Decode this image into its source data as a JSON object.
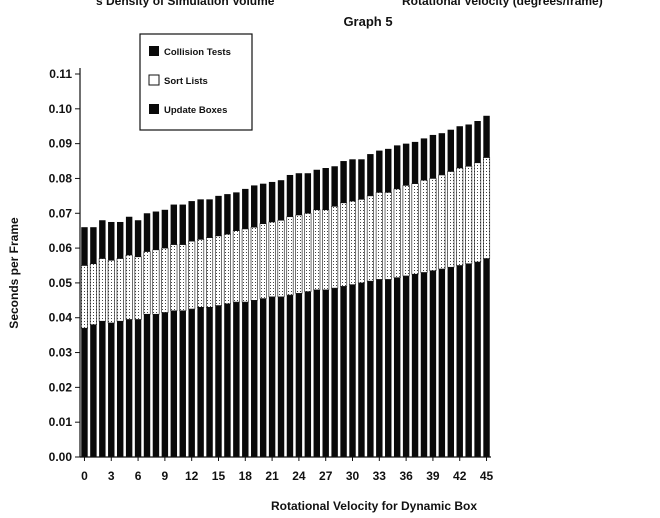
{
  "header_fragments": {
    "left": "s Density of Simulation Volume",
    "right": "Rotational Velocity (degrees/frame)"
  },
  "chart_data": {
    "type": "bar",
    "stacked": true,
    "title": "Graph 5",
    "xlabel": "Rotational Velocity for Dynamic Box",
    "ylabel": "Seconds per Frame",
    "ylim": [
      0,
      0.11
    ],
    "yticks": [
      "0.00",
      "0.01",
      "0.02",
      "0.03",
      "0.04",
      "0.05",
      "0.06",
      "0.07",
      "0.08",
      "0.09",
      "0.10",
      "0.11"
    ],
    "xticks": [
      "0",
      "3",
      "6",
      "9",
      "12",
      "15",
      "18",
      "21",
      "24",
      "27",
      "30",
      "33",
      "36",
      "39",
      "42",
      "45"
    ],
    "grid": false,
    "legend_position": "top-left",
    "categories": [
      0,
      1,
      2,
      3,
      4,
      5,
      6,
      7,
      8,
      9,
      10,
      11,
      12,
      13,
      14,
      15,
      16,
      17,
      18,
      19,
      20,
      21,
      22,
      23,
      24,
      25,
      26,
      27,
      28,
      29,
      30,
      31,
      32,
      33,
      34,
      35,
      36,
      37,
      38,
      39,
      40,
      41,
      42,
      43,
      44,
      45
    ],
    "series": [
      {
        "name": "Update Boxes",
        "color": "#0a0a0a",
        "pattern": "solid",
        "values": [
          0.037,
          0.038,
          0.039,
          0.0385,
          0.039,
          0.0395,
          0.0395,
          0.041,
          0.041,
          0.0415,
          0.042,
          0.042,
          0.0425,
          0.043,
          0.043,
          0.0435,
          0.044,
          0.0445,
          0.0445,
          0.045,
          0.0455,
          0.046,
          0.046,
          0.0465,
          0.047,
          0.0475,
          0.048,
          0.048,
          0.0485,
          0.049,
          0.0495,
          0.05,
          0.0505,
          0.051,
          0.051,
          0.0515,
          0.052,
          0.0525,
          0.053,
          0.0535,
          0.054,
          0.0545,
          0.055,
          0.0555,
          0.056,
          0.057
        ]
      },
      {
        "name": "Sort Lists",
        "color": "#ffffff",
        "pattern": "dotted",
        "values": [
          0.018,
          0.0175,
          0.018,
          0.018,
          0.018,
          0.0185,
          0.018,
          0.018,
          0.0185,
          0.0185,
          0.019,
          0.019,
          0.0195,
          0.0195,
          0.02,
          0.02,
          0.02,
          0.0205,
          0.021,
          0.021,
          0.0215,
          0.0215,
          0.022,
          0.0225,
          0.0225,
          0.0225,
          0.023,
          0.023,
          0.0235,
          0.024,
          0.024,
          0.024,
          0.0245,
          0.025,
          0.025,
          0.0255,
          0.026,
          0.026,
          0.0265,
          0.0265,
          0.027,
          0.0275,
          0.028,
          0.028,
          0.0285,
          0.029
        ]
      },
      {
        "name": "Collision Tests",
        "color": "#0a0a0a",
        "pattern": "solid",
        "values": [
          0.011,
          0.0105,
          0.011,
          0.011,
          0.0105,
          0.011,
          0.0105,
          0.011,
          0.011,
          0.011,
          0.0115,
          0.0115,
          0.0115,
          0.0115,
          0.011,
          0.0115,
          0.0115,
          0.011,
          0.0115,
          0.012,
          0.0115,
          0.0115,
          0.0115,
          0.012,
          0.012,
          0.0115,
          0.0115,
          0.012,
          0.0115,
          0.012,
          0.012,
          0.0115,
          0.012,
          0.012,
          0.0125,
          0.0125,
          0.012,
          0.012,
          0.012,
          0.0125,
          0.012,
          0.012,
          0.012,
          0.012,
          0.012,
          0.012
        ]
      }
    ],
    "legend": [
      "Collision Tests",
      "Sort Lists",
      "Update Boxes"
    ]
  }
}
